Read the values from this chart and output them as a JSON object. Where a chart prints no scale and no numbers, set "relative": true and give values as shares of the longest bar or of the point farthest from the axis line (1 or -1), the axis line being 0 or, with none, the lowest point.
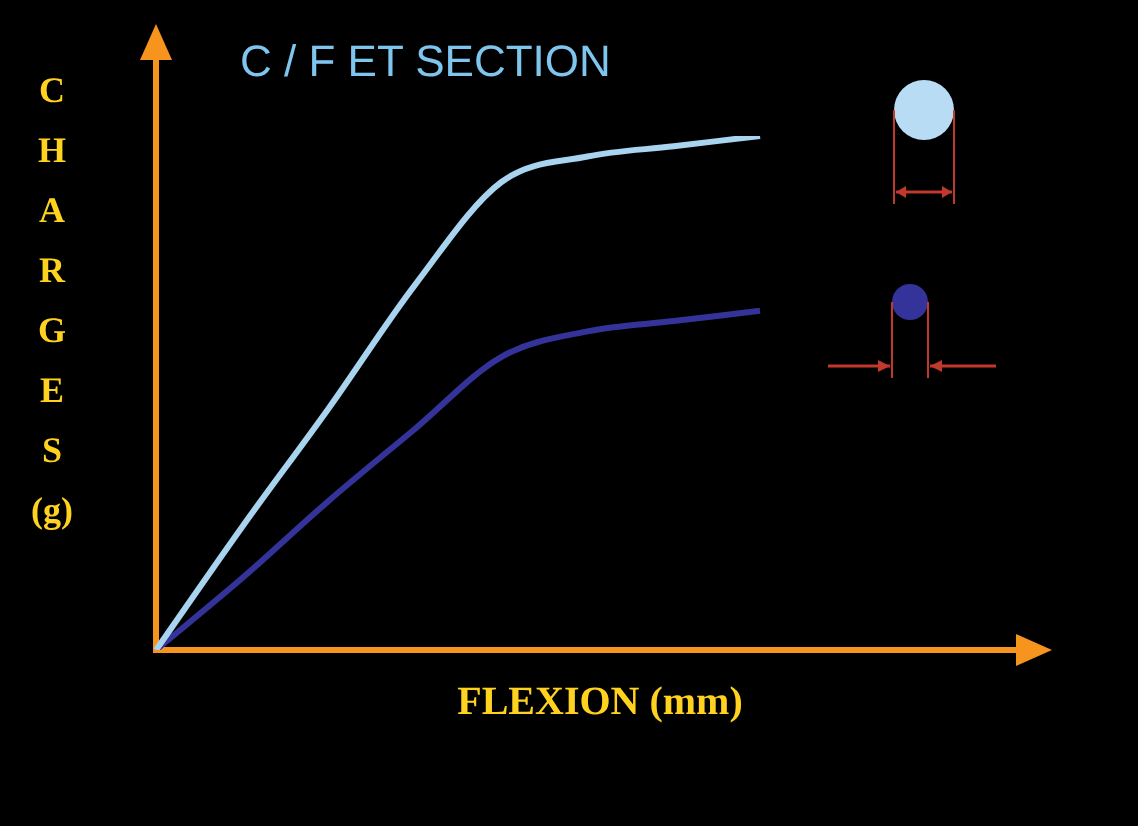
{
  "chart_data": {
    "type": "line",
    "title": "C / F ET SECTION",
    "xlabel": "FLEXION (mm)",
    "ylabel": "CHARGES (g)",
    "relative": true,
    "tick_labels": false,
    "marker": "none",
    "categories": [
      null,
      null,
      null,
      null,
      null,
      null,
      null,
      null
    ],
    "series": [
      {
        "color": "#a8d4f0",
        "values": [
          0,
          0.24,
          0.47,
          0.71,
          0.91,
          0.96,
          0.98,
          1.0
        ]
      },
      {
        "color": "#333399",
        "values": [
          0,
          0.14,
          0.29,
          0.43,
          0.57,
          0.62,
          0.64,
          0.66
        ]
      }
    ]
  }
}
